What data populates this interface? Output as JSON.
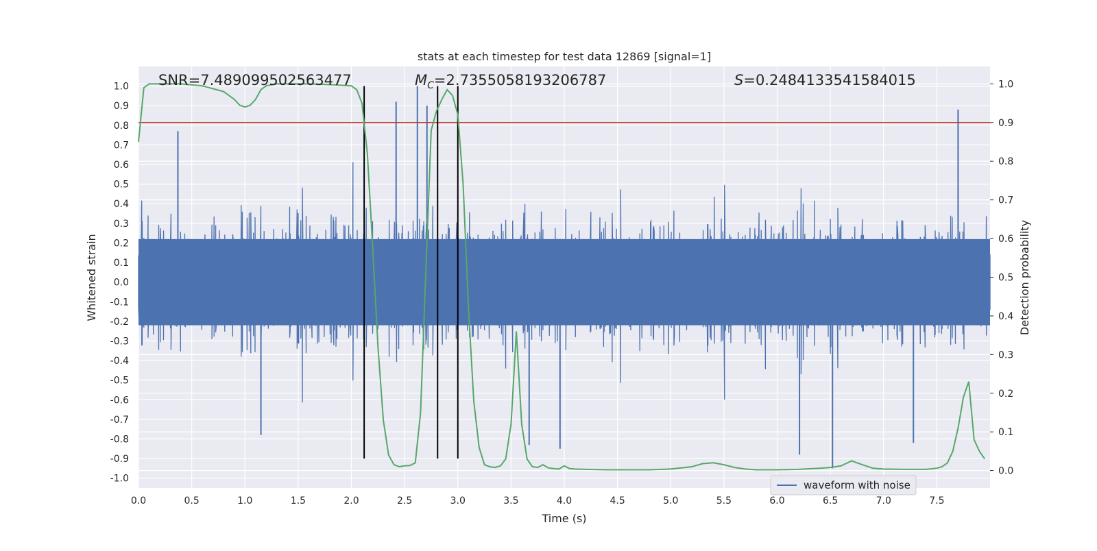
{
  "chart_data": {
    "type": "line",
    "title": "stats at each timestep for test data 12869 [signal=1]",
    "xlabel": "Time (s)",
    "ylabel_left": "Whitened strain",
    "ylabel_right": "Detection probability",
    "xlim": [
      0.0,
      8.0
    ],
    "ylim_left": [
      -1.05,
      1.1
    ],
    "ylim_right": [
      -0.045,
      1.045
    ],
    "x_ticks": [
      "0.0",
      "0.5",
      "1.0",
      "1.5",
      "2.0",
      "2.5",
      "3.0",
      "3.5",
      "4.0",
      "4.5",
      "5.0",
      "5.5",
      "6.0",
      "6.5",
      "7.0",
      "7.5"
    ],
    "y_left_ticks": [
      "1.0",
      "0.9",
      "0.8",
      "0.7",
      "0.6",
      "0.5",
      "0.4",
      "0.3",
      "0.2",
      "0.1",
      "0.0",
      "-0.1",
      "-0.2",
      "-0.3",
      "-0.4",
      "-0.5",
      "-0.6",
      "-0.7",
      "-0.8",
      "-0.9",
      "-1.0"
    ],
    "y_right_ticks": [
      "1.0",
      "0.9",
      "0.8",
      "0.7",
      "0.6",
      "0.5",
      "0.4",
      "0.3",
      "0.2",
      "0.1",
      "0.0"
    ],
    "grid": true,
    "legend_position": "lower-right",
    "annotations": {
      "snr": "SNR=7.489099502563477",
      "mc_symbol": "M",
      "mc_subscript": "C",
      "mc_value": "=2.7355058193206787",
      "s_symbol": "S",
      "s_value": "=0.2484133541584015"
    },
    "threshold": {
      "y_right": 0.9,
      "color": "#c0392b"
    },
    "vertical_lines_x": [
      2.12,
      2.81,
      3.0
    ],
    "waveform": {
      "name": "waveform with noise",
      "color": "#4c72b0",
      "typical_range": [
        -0.45,
        0.45
      ],
      "peaks": [
        {
          "x": 2.42,
          "y": 0.92
        },
        {
          "x": 2.62,
          "y": 1.0
        },
        {
          "x": 2.71,
          "y": 0.9
        },
        {
          "x": 7.7,
          "y": 0.88
        },
        {
          "x": 0.37,
          "y": 0.77
        },
        {
          "x": 6.21,
          "y": -0.88
        },
        {
          "x": 6.52,
          "y": -0.95
        },
        {
          "x": 7.28,
          "y": -0.82
        },
        {
          "x": 3.67,
          "y": -0.83
        },
        {
          "x": 3.96,
          "y": -0.85
        },
        {
          "x": 1.15,
          "y": -0.78
        }
      ]
    },
    "detection_probability": {
      "color": "#55a868",
      "x": [
        0.0,
        0.05,
        0.1,
        0.2,
        0.4,
        0.6,
        0.8,
        0.9,
        0.95,
        1.0,
        1.05,
        1.1,
        1.15,
        1.2,
        1.3,
        1.4,
        1.6,
        1.8,
        2.0,
        2.05,
        2.1,
        2.15,
        2.2,
        2.25,
        2.3,
        2.35,
        2.4,
        2.45,
        2.5,
        2.55,
        2.6,
        2.65,
        2.7,
        2.75,
        2.8,
        2.85,
        2.9,
        2.95,
        3.0,
        3.05,
        3.1,
        3.15,
        3.2,
        3.25,
        3.3,
        3.35,
        3.4,
        3.45,
        3.5,
        3.55,
        3.6,
        3.65,
        3.7,
        3.75,
        3.8,
        3.85,
        3.9,
        3.95,
        4.0,
        4.05,
        4.1,
        4.2,
        4.4,
        4.6,
        4.8,
        5.0,
        5.2,
        5.3,
        5.4,
        5.5,
        5.6,
        5.7,
        5.8,
        6.0,
        6.2,
        6.4,
        6.5,
        6.6,
        6.7,
        6.8,
        6.9,
        7.0,
        7.2,
        7.4,
        7.5,
        7.55,
        7.6,
        7.65,
        7.7,
        7.75,
        7.8,
        7.85,
        7.9,
        7.95
      ],
      "y": [
        0.85,
        0.99,
        1.0,
        1.0,
        1.0,
        0.995,
        0.98,
        0.96,
        0.945,
        0.94,
        0.945,
        0.96,
        0.985,
        0.995,
        1.0,
        1.0,
        1.0,
        0.998,
        0.995,
        0.985,
        0.95,
        0.82,
        0.58,
        0.32,
        0.13,
        0.04,
        0.015,
        0.01,
        0.012,
        0.013,
        0.02,
        0.15,
        0.52,
        0.88,
        0.93,
        0.96,
        0.985,
        0.97,
        0.92,
        0.74,
        0.42,
        0.18,
        0.06,
        0.015,
        0.01,
        0.008,
        0.012,
        0.03,
        0.12,
        0.36,
        0.12,
        0.03,
        0.01,
        0.008,
        0.015,
        0.007,
        0.005,
        0.004,
        0.012,
        0.005,
        0.004,
        0.003,
        0.002,
        0.002,
        0.002,
        0.004,
        0.01,
        0.018,
        0.02,
        0.015,
        0.008,
        0.004,
        0.002,
        0.002,
        0.003,
        0.006,
        0.008,
        0.012,
        0.025,
        0.015,
        0.006,
        0.004,
        0.003,
        0.003,
        0.006,
        0.01,
        0.02,
        0.05,
        0.11,
        0.19,
        0.23,
        0.08,
        0.05,
        0.03
      ]
    }
  }
}
